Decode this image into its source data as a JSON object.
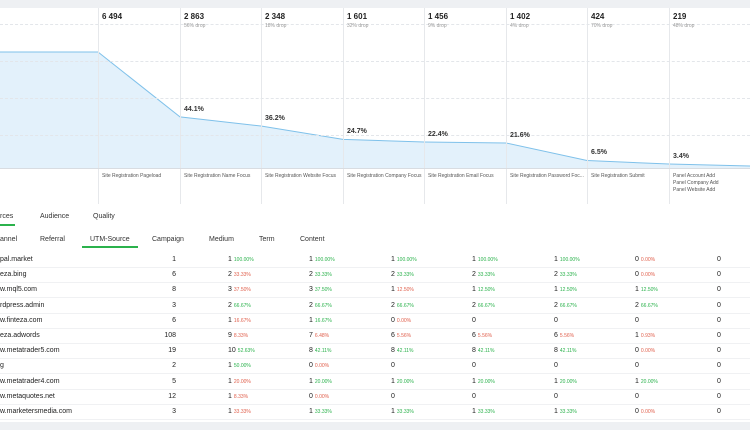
{
  "stages": [
    {
      "count": "6 494",
      "drop": "",
      "pct": "",
      "label": "Site Registration Pageload"
    },
    {
      "count": "2 863",
      "drop": "56% drop",
      "pct": "44.1%",
      "label": "Site Registration Name Focus"
    },
    {
      "count": "2 348",
      "drop": "18% drop",
      "pct": "36.2%",
      "label": "Site Registration Website Focus"
    },
    {
      "count": "1 601",
      "drop": "32% drop",
      "pct": "24.7%",
      "label": "Site Registration Company Focus"
    },
    {
      "count": "1 456",
      "drop": "9% drop",
      "pct": "22.4%",
      "label": "Site Registration Email Focus"
    },
    {
      "count": "1 402",
      "drop": "4% drop",
      "pct": "21.6%",
      "label": "Site Registration Password Foc..."
    },
    {
      "count": "424",
      "drop": "70% drop",
      "pct": "6.5%",
      "label": "Site Registration Submit"
    },
    {
      "count": "219",
      "drop": "48% drop",
      "pct": "3.4%",
      "label": "Panel Account Add\nPanel Company Add\nPanel Website Add"
    }
  ],
  "funnel_values": [
    100,
    44.1,
    36.2,
    24.7,
    22.4,
    21.6,
    6.5,
    3.4
  ],
  "tabs_main": {
    "sources": "rces",
    "audience": "Audience",
    "quality": "Quality"
  },
  "tabs_sub": {
    "channel": "annel",
    "referral": "Referral",
    "utm_source": "UTM-Source",
    "campaign": "Campaign",
    "medium": "Medium",
    "term": "Term",
    "content": "Content"
  },
  "rows": [
    {
      "name": "pal.market",
      "total": "1",
      "c": [
        [
          "1",
          "100.00%",
          "g"
        ],
        [
          "1",
          "100.00%",
          "g"
        ],
        [
          "1",
          "100.00%",
          "g"
        ],
        [
          "1",
          "100.00%",
          "g"
        ],
        [
          "1",
          "100.00%",
          "g"
        ],
        [
          "0",
          "0.00%",
          "r"
        ],
        [
          "0",
          "",
          ""
        ]
      ]
    },
    {
      "name": "eza.bing",
      "total": "6",
      "c": [
        [
          "2",
          "33.33%",
          "r"
        ],
        [
          "2",
          "33.33%",
          "g"
        ],
        [
          "2",
          "33.33%",
          "g"
        ],
        [
          "2",
          "33.33%",
          "g"
        ],
        [
          "2",
          "33.33%",
          "g"
        ],
        [
          "0",
          "0.00%",
          "r"
        ],
        [
          "0",
          "",
          ""
        ]
      ]
    },
    {
      "name": "w.mql5.com",
      "total": "8",
      "c": [
        [
          "3",
          "37.50%",
          "r"
        ],
        [
          "3",
          "37.50%",
          "g"
        ],
        [
          "1",
          "12.50%",
          "r"
        ],
        [
          "1",
          "12.50%",
          "g"
        ],
        [
          "1",
          "12.50%",
          "g"
        ],
        [
          "1",
          "12.50%",
          "g"
        ],
        [
          "0",
          "",
          ""
        ]
      ]
    },
    {
      "name": "rdpress.admin",
      "total": "3",
      "c": [
        [
          "2",
          "66.67%",
          "g"
        ],
        [
          "2",
          "66.67%",
          "g"
        ],
        [
          "2",
          "66.67%",
          "g"
        ],
        [
          "2",
          "66.67%",
          "g"
        ],
        [
          "2",
          "66.67%",
          "g"
        ],
        [
          "2",
          "66.67%",
          "g"
        ],
        [
          "0",
          "",
          ""
        ]
      ]
    },
    {
      "name": "w.finteza.com",
      "total": "6",
      "c": [
        [
          "1",
          "16.67%",
          "r"
        ],
        [
          "1",
          "16.67%",
          "g"
        ],
        [
          "0",
          "0.00%",
          "r"
        ],
        [
          "0",
          "",
          ""
        ],
        [
          "0",
          "",
          ""
        ],
        [
          "0",
          "",
          ""
        ],
        [
          "0",
          "",
          ""
        ]
      ]
    },
    {
      "name": "eza.adwords",
      "total": "108",
      "c": [
        [
          "9",
          "8.33%",
          "r"
        ],
        [
          "7",
          "6.48%",
          "r"
        ],
        [
          "6",
          "5.56%",
          "r"
        ],
        [
          "6",
          "5.56%",
          "r"
        ],
        [
          "6",
          "5.56%",
          "r"
        ],
        [
          "1",
          "0.93%",
          "r"
        ],
        [
          "0",
          "",
          ""
        ]
      ]
    },
    {
      "name": "w.metatrader5.com",
      "total": "19",
      "c": [
        [
          "10",
          "52.63%",
          "g"
        ],
        [
          "8",
          "42.11%",
          "g"
        ],
        [
          "8",
          "42.11%",
          "g"
        ],
        [
          "8",
          "42.11%",
          "g"
        ],
        [
          "8",
          "42.11%",
          "g"
        ],
        [
          "0",
          "0.00%",
          "r"
        ],
        [
          "0",
          "",
          ""
        ]
      ]
    },
    {
      "name": "g",
      "total": "2",
      "c": [
        [
          "1",
          "50.00%",
          "g"
        ],
        [
          "0",
          "0.00%",
          "r"
        ],
        [
          "0",
          "",
          ""
        ],
        [
          "0",
          "",
          ""
        ],
        [
          "0",
          "",
          ""
        ],
        [
          "0",
          "",
          ""
        ],
        [
          "0",
          "",
          ""
        ]
      ]
    },
    {
      "name": "w.metatrader4.com",
      "total": "5",
      "c": [
        [
          "1",
          "20.00%",
          "r"
        ],
        [
          "1",
          "20.00%",
          "g"
        ],
        [
          "1",
          "20.00%",
          "g"
        ],
        [
          "1",
          "20.00%",
          "g"
        ],
        [
          "1",
          "20.00%",
          "g"
        ],
        [
          "1",
          "20.00%",
          "g"
        ],
        [
          "0",
          "",
          ""
        ]
      ]
    },
    {
      "name": "w.metaquotes.net",
      "total": "12",
      "c": [
        [
          "1",
          "8.33%",
          "r"
        ],
        [
          "0",
          "0.00%",
          "r"
        ],
        [
          "0",
          "",
          ""
        ],
        [
          "0",
          "",
          ""
        ],
        [
          "0",
          "",
          ""
        ],
        [
          "0",
          "",
          ""
        ],
        [
          "0",
          "",
          ""
        ]
      ]
    },
    {
      "name": "w.marketersmedia.com",
      "total": "3",
      "c": [
        [
          "1",
          "33.33%",
          "r"
        ],
        [
          "1",
          "33.33%",
          "g"
        ],
        [
          "1",
          "33.33%",
          "g"
        ],
        [
          "1",
          "33.33%",
          "g"
        ],
        [
          "1",
          "33.33%",
          "g"
        ],
        [
          "0",
          "0.00%",
          "r"
        ],
        [
          "0",
          "",
          ""
        ]
      ]
    }
  ]
}
